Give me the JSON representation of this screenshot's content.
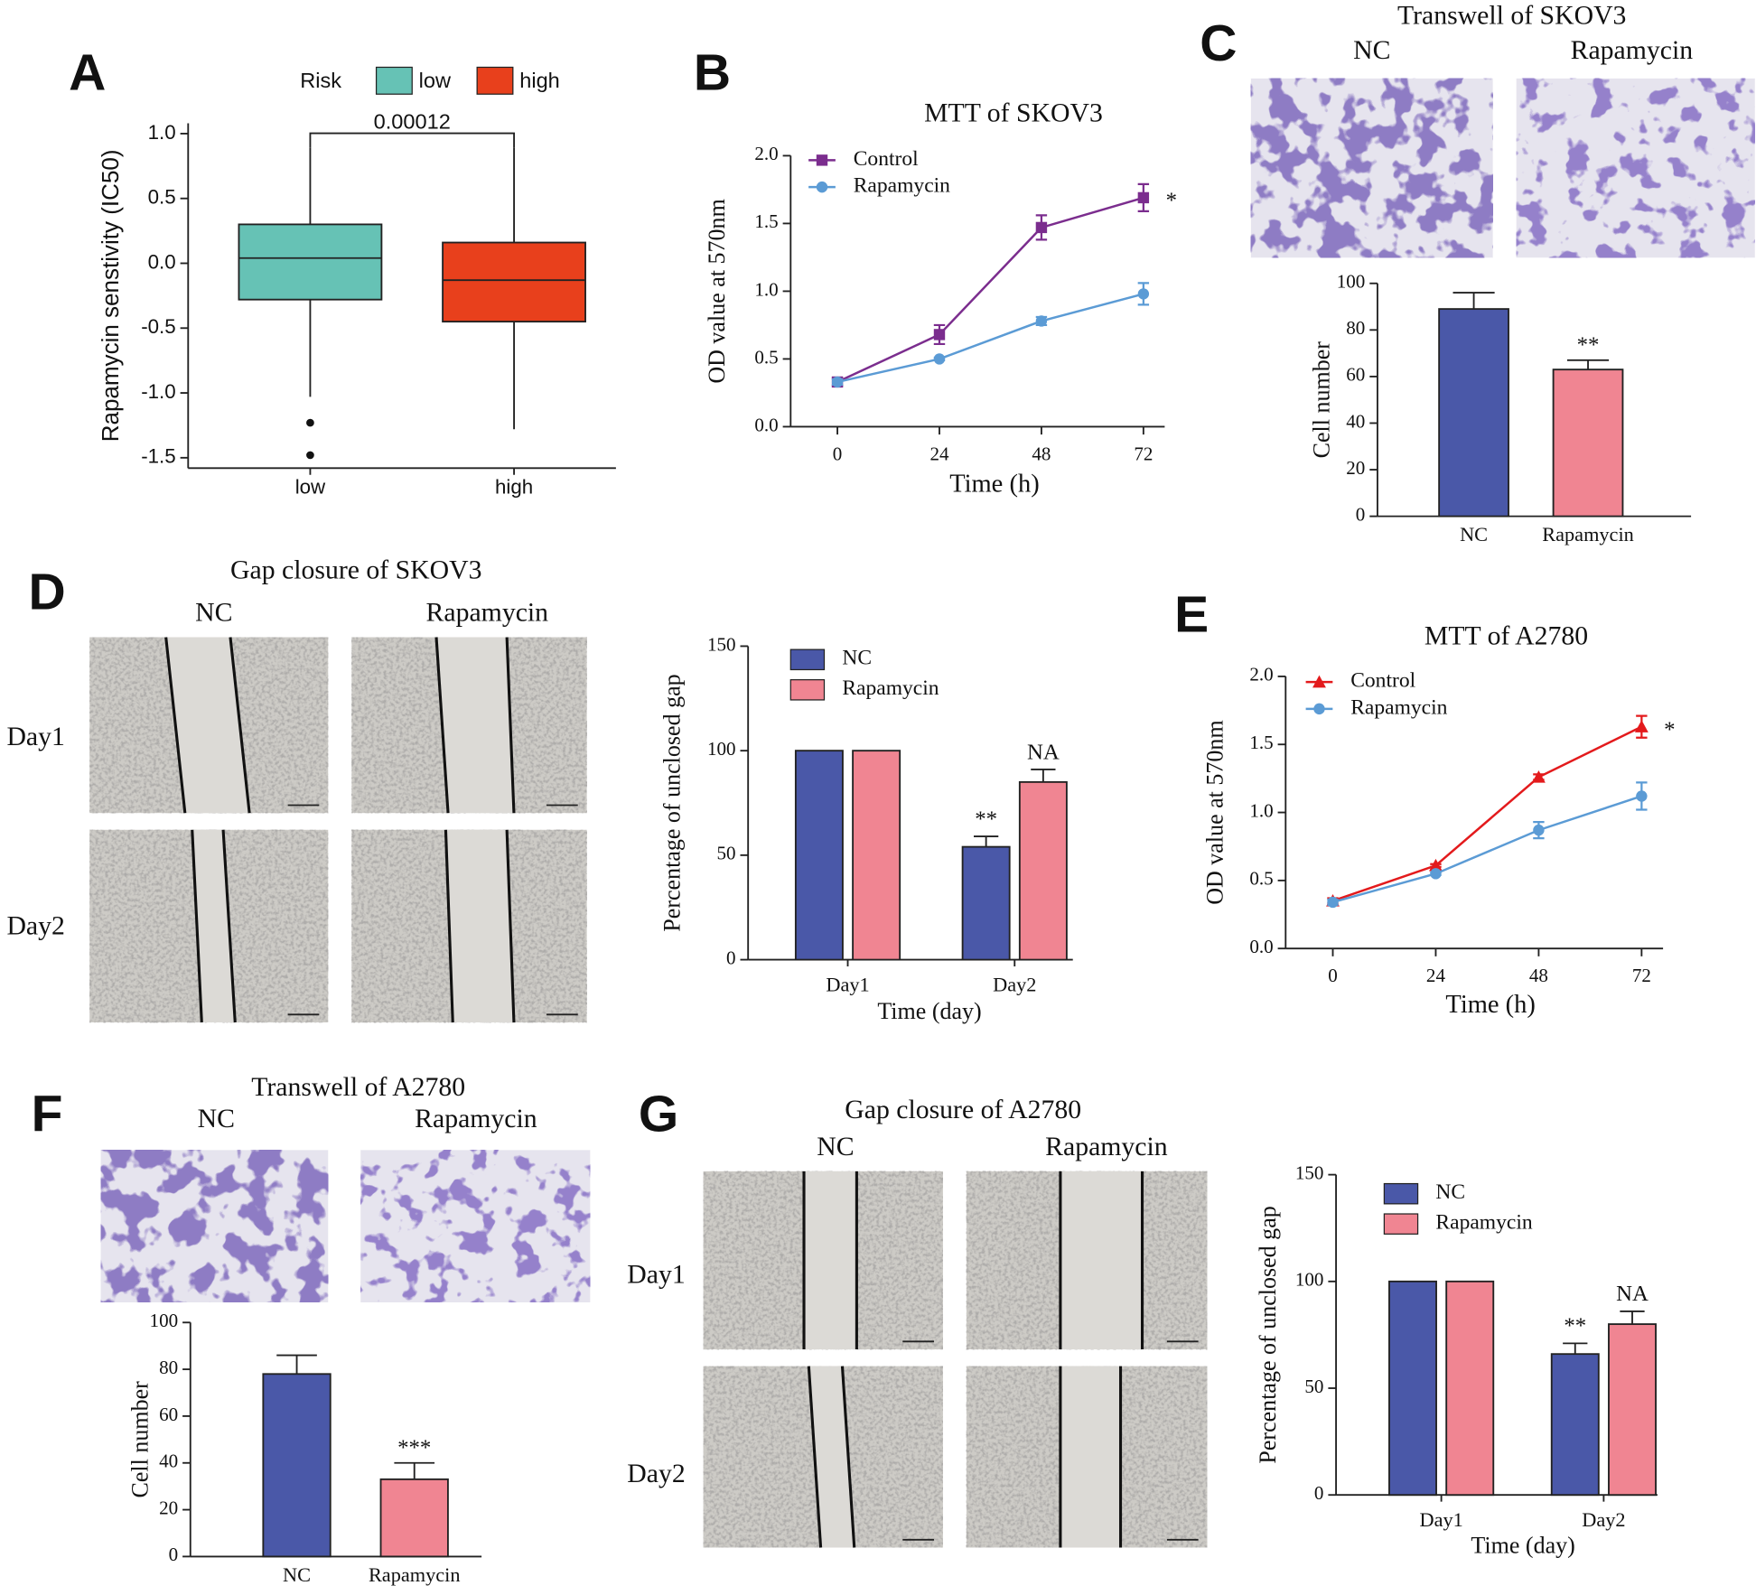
{
  "panels": [
    "A",
    "B",
    "C",
    "D",
    "E",
    "F",
    "G"
  ],
  "micrographs": [
    {
      "title": "Transwell of SKOV3",
      "columns": [
        "NC",
        "Rapamycin"
      ]
    },
    {
      "title": "Gap closure of SKOV3",
      "columns": [
        "NC",
        "Rapamycin"
      ],
      "rows": [
        "Day1",
        "Day2"
      ]
    },
    {
      "title": "Transwell of A2780",
      "columns": [
        "NC",
        "Rapamycin"
      ]
    },
    {
      "title": "Gap closure of A2780",
      "columns": [
        "NC",
        "Rapamycin"
      ],
      "rows": [
        "Day1",
        "Day2"
      ]
    }
  ],
  "chart_data": [
    {
      "type": "box",
      "ylabel": "Rapamycin senstivity (IC50)",
      "legend_title": "Risk",
      "categories": [
        "low",
        "high"
      ],
      "series": [
        {
          "name": "low",
          "color": "#66c2b5",
          "min": -1.03,
          "q1": -0.28,
          "median": 0.04,
          "q3": 0.3,
          "max": 0.89,
          "outliers": [
            -1.23,
            -1.48
          ]
        },
        {
          "name": "high",
          "color": "#e8401c",
          "min": -1.28,
          "q1": -0.45,
          "median": -0.13,
          "q3": 0.16,
          "max": 0.89,
          "outliers": []
        }
      ],
      "annotation": "0.00012",
      "ylim": [
        -1.58,
        1.08
      ],
      "yticks": [
        -1.5,
        {
          "value": -1,
          "label": "-1.0"
        },
        -0.5,
        {
          "value": 0,
          "label": "0.0"
        },
        0.5,
        {
          "value": 1,
          "label": "1.0"
        }
      ]
    },
    {
      "type": "line",
      "title": "MTT of SKOV3",
      "xlabel": "Time (h)",
      "ylabel": "OD value at 570nm",
      "x": [
        0,
        24,
        48,
        72
      ],
      "xlim": [
        -11,
        77
      ],
      "xticks": [
        0,
        24,
        48,
        72
      ],
      "ylim": [
        0,
        2
      ],
      "yticks": [
        {
          "value": 0,
          "label": "0.0"
        },
        0.5,
        {
          "value": 1,
          "label": "1.0"
        },
        1.5,
        {
          "value": 2,
          "label": "2.0"
        }
      ],
      "series": [
        {
          "name": "Control",
          "color": "#7b2d8e",
          "marker": "square",
          "values": [
            0.33,
            0.68,
            1.47,
            1.69
          ],
          "errors": [
            0.03,
            0.07,
            0.09,
            0.1
          ],
          "notes": [
            null,
            null,
            null,
            "*"
          ]
        },
        {
          "name": "Rapamycin",
          "color": "#5b9bd5",
          "marker": "circle",
          "values": [
            0.33,
            0.5,
            0.78,
            0.98
          ],
          "errors": [
            0.02,
            0.01,
            0.03,
            0.08
          ]
        }
      ]
    },
    {
      "type": "bar",
      "ylabel": "Cell number",
      "categories": [
        "NC",
        "Rapamycin"
      ],
      "values": [
        89,
        63
      ],
      "errors": [
        7,
        4
      ],
      "colors": [
        "#4a58a8",
        "#f08592"
      ],
      "notes": [
        null,
        "**"
      ],
      "ylim": [
        0,
        100
      ],
      "yticks": [
        0,
        20,
        40,
        60,
        80,
        100
      ]
    },
    {
      "type": "grouped_bar",
      "xlabel": "Time (day)",
      "ylabel": "Percentage of unclosed gap",
      "categories": [
        "Day1",
        "Day2"
      ],
      "series": [
        {
          "name": "NC",
          "color": "#4a58a8",
          "values": [
            100,
            54
          ],
          "errors": [
            null,
            5
          ],
          "notes": [
            null,
            "**"
          ]
        },
        {
          "name": "Rapamycin",
          "color": "#f08592",
          "values": [
            100,
            85
          ],
          "errors": [
            null,
            6
          ],
          "notes": [
            null,
            "NA"
          ]
        }
      ],
      "ylim": [
        0,
        150
      ],
      "yticks": [
        0,
        50,
        100,
        150
      ]
    },
    {
      "type": "line",
      "title": "MTT of A2780",
      "xlabel": "Time (h)",
      "ylabel": "OD value at 570nm",
      "x": [
        0,
        24,
        48,
        72
      ],
      "xlim": [
        -11,
        77
      ],
      "xticks": [
        0,
        24,
        48,
        72
      ],
      "ylim": [
        0,
        2
      ],
      "yticks": [
        {
          "value": 0,
          "label": "0.0"
        },
        0.5,
        {
          "value": 1,
          "label": "1.0"
        },
        1.5,
        {
          "value": 2,
          "label": "2.0"
        }
      ],
      "series": [
        {
          "name": "Control",
          "color": "#e31a1c",
          "marker": "triangle",
          "values": [
            0.35,
            0.61,
            1.26,
            1.63
          ],
          "errors": [
            0.02,
            0.01,
            0.02,
            0.08
          ],
          "notes": [
            null,
            null,
            null,
            "*"
          ]
        },
        {
          "name": "Rapamycin",
          "color": "#5b9bd5",
          "marker": "circle",
          "values": [
            0.34,
            0.55,
            0.87,
            1.12
          ],
          "errors": [
            0.02,
            0.01,
            0.06,
            0.1
          ]
        }
      ]
    },
    {
      "type": "bar",
      "ylabel": "Cell number",
      "categories": [
        "NC",
        "Rapamycin"
      ],
      "values": [
        78,
        33
      ],
      "errors": [
        8,
        7
      ],
      "colors": [
        "#4a58a8",
        "#f08592"
      ],
      "notes": [
        null,
        "***"
      ],
      "ylim": [
        0,
        100
      ],
      "yticks": [
        0,
        20,
        40,
        60,
        80,
        100
      ]
    },
    {
      "type": "grouped_bar",
      "xlabel": "Time (day)",
      "ylabel": "Percentage of unclosed gap",
      "categories": [
        "Day1",
        "Day2"
      ],
      "series": [
        {
          "name": "NC",
          "color": "#4a58a8",
          "values": [
            100,
            66
          ],
          "errors": [
            null,
            5
          ],
          "notes": [
            null,
            "**"
          ]
        },
        {
          "name": "Rapamycin",
          "color": "#f08592",
          "values": [
            100,
            80
          ],
          "errors": [
            null,
            6
          ],
          "notes": [
            null,
            "NA"
          ]
        }
      ],
      "ylim": [
        0,
        150
      ],
      "yticks": [
        0,
        50,
        100,
        150
      ]
    }
  ]
}
